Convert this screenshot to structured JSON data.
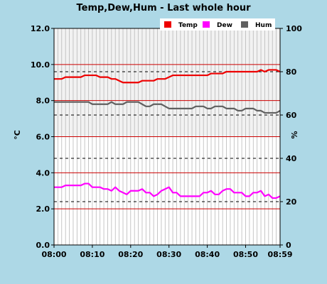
{
  "chart_data": {
    "type": "line",
    "title": "Temp,Dew,Hum - Last whole hour",
    "ylabel_left": "°C",
    "ylabel_right": "%",
    "left_axis": {
      "ylim": [
        0,
        12
      ],
      "ticks": [
        "0.0",
        "2.0",
        "4.0",
        "6.0",
        "8.0",
        "10.0",
        "12.0"
      ]
    },
    "right_axis": {
      "ylim": [
        0,
        100
      ],
      "ticks": [
        "0",
        "20",
        "40",
        "60",
        "80",
        "100"
      ]
    },
    "x_range": [
      0,
      59
    ],
    "x_ticks": [
      {
        "x": 0,
        "label": "08:00"
      },
      {
        "x": 10,
        "label": "08:10"
      },
      {
        "x": 20,
        "label": "08:20"
      },
      {
        "x": 30,
        "label": "08:30"
      },
      {
        "x": 40,
        "label": "08:40"
      },
      {
        "x": 50,
        "label": "08:50"
      },
      {
        "x": 59,
        "label": "08:59"
      }
    ],
    "legend_position": "top-right",
    "grid": true,
    "series": [
      {
        "name": "Temp",
        "axis": "left",
        "color": "#ee0000",
        "points": [
          [
            0,
            9.2
          ],
          [
            2,
            9.2
          ],
          [
            3,
            9.3
          ],
          [
            7,
            9.3
          ],
          [
            8,
            9.4
          ],
          [
            11,
            9.4
          ],
          [
            12,
            9.3
          ],
          [
            14,
            9.3
          ],
          [
            15,
            9.2
          ],
          [
            16,
            9.2
          ],
          [
            17,
            9.1
          ],
          [
            18,
            9.0
          ],
          [
            22,
            9.0
          ],
          [
            23,
            9.1
          ],
          [
            26,
            9.1
          ],
          [
            27,
            9.2
          ],
          [
            29,
            9.2
          ],
          [
            30,
            9.3
          ],
          [
            31,
            9.4
          ],
          [
            40,
            9.4
          ],
          [
            41,
            9.5
          ],
          [
            44,
            9.5
          ],
          [
            45,
            9.6
          ],
          [
            53,
            9.6
          ],
          [
            54,
            9.7
          ],
          [
            55,
            9.6
          ],
          [
            56,
            9.7
          ],
          [
            58,
            9.7
          ],
          [
            59,
            9.6
          ]
        ]
      },
      {
        "name": "Dew",
        "axis": "left",
        "color": "#ff00ff",
        "points": [
          [
            0,
            3.2
          ],
          [
            2,
            3.2
          ],
          [
            3,
            3.3
          ],
          [
            7,
            3.3
          ],
          [
            8,
            3.4
          ],
          [
            9,
            3.4
          ],
          [
            10,
            3.2
          ],
          [
            12,
            3.2
          ],
          [
            13,
            3.1
          ],
          [
            14,
            3.1
          ],
          [
            15,
            3.0
          ],
          [
            16,
            3.2
          ],
          [
            17,
            3.0
          ],
          [
            18,
            2.9
          ],
          [
            19,
            2.8
          ],
          [
            20,
            3.0
          ],
          [
            22,
            3.0
          ],
          [
            23,
            3.1
          ],
          [
            24,
            2.9
          ],
          [
            25,
            2.9
          ],
          [
            26,
            2.7
          ],
          [
            27,
            2.8
          ],
          [
            28,
            3.0
          ],
          [
            29,
            3.1
          ],
          [
            30,
            3.2
          ],
          [
            31,
            2.9
          ],
          [
            32,
            2.9
          ],
          [
            33,
            2.7
          ],
          [
            38,
            2.7
          ],
          [
            39,
            2.9
          ],
          [
            40,
            2.9
          ],
          [
            41,
            3.0
          ],
          [
            42,
            2.8
          ],
          [
            43,
            2.8
          ],
          [
            44,
            3.0
          ],
          [
            45,
            3.1
          ],
          [
            46,
            3.1
          ],
          [
            47,
            2.9
          ],
          [
            49,
            2.9
          ],
          [
            50,
            2.7
          ],
          [
            51,
            2.7
          ],
          [
            52,
            2.9
          ],
          [
            54,
            3.0
          ],
          [
            55,
            2.7
          ],
          [
            56,
            2.8
          ],
          [
            57,
            2.6
          ],
          [
            58,
            2.6
          ],
          [
            59,
            2.7
          ]
        ]
      },
      {
        "name": "Hum",
        "axis": "right",
        "color": "#606060",
        "points": [
          [
            0,
            66
          ],
          [
            9,
            66
          ],
          [
            10,
            65
          ],
          [
            14,
            65
          ],
          [
            15,
            66
          ],
          [
            16,
            65
          ],
          [
            18,
            65
          ],
          [
            19,
            66
          ],
          [
            22,
            66
          ],
          [
            23,
            65
          ],
          [
            24,
            64
          ],
          [
            26,
            65
          ],
          [
            28,
            65
          ],
          [
            29,
            64
          ],
          [
            30,
            63
          ],
          [
            36,
            63
          ],
          [
            37,
            64
          ],
          [
            39,
            64
          ],
          [
            40,
            63
          ],
          [
            41,
            63
          ],
          [
            42,
            64
          ],
          [
            44,
            64
          ],
          [
            45,
            63
          ],
          [
            47,
            63
          ],
          [
            48,
            62
          ],
          [
            49,
            62
          ],
          [
            50,
            63
          ],
          [
            52,
            63
          ],
          [
            53,
            62
          ],
          [
            54,
            62
          ],
          [
            55,
            61
          ],
          [
            58,
            61
          ],
          [
            59,
            62
          ]
        ]
      }
    ],
    "reference_lines": [
      {
        "axis": "left",
        "style": "solid",
        "color": "#cc0000",
        "values": [
          2,
          4,
          6,
          8,
          10
        ]
      },
      {
        "axis": "right",
        "style": "dashed",
        "color": "#000000",
        "values": [
          20,
          40,
          60,
          80
        ]
      }
    ]
  },
  "colors": {
    "page_background": "#add8e6",
    "plot_background": "#ffffff",
    "plot_grid": "#b8b8b8",
    "plot_shade": "#f2f2f2"
  }
}
